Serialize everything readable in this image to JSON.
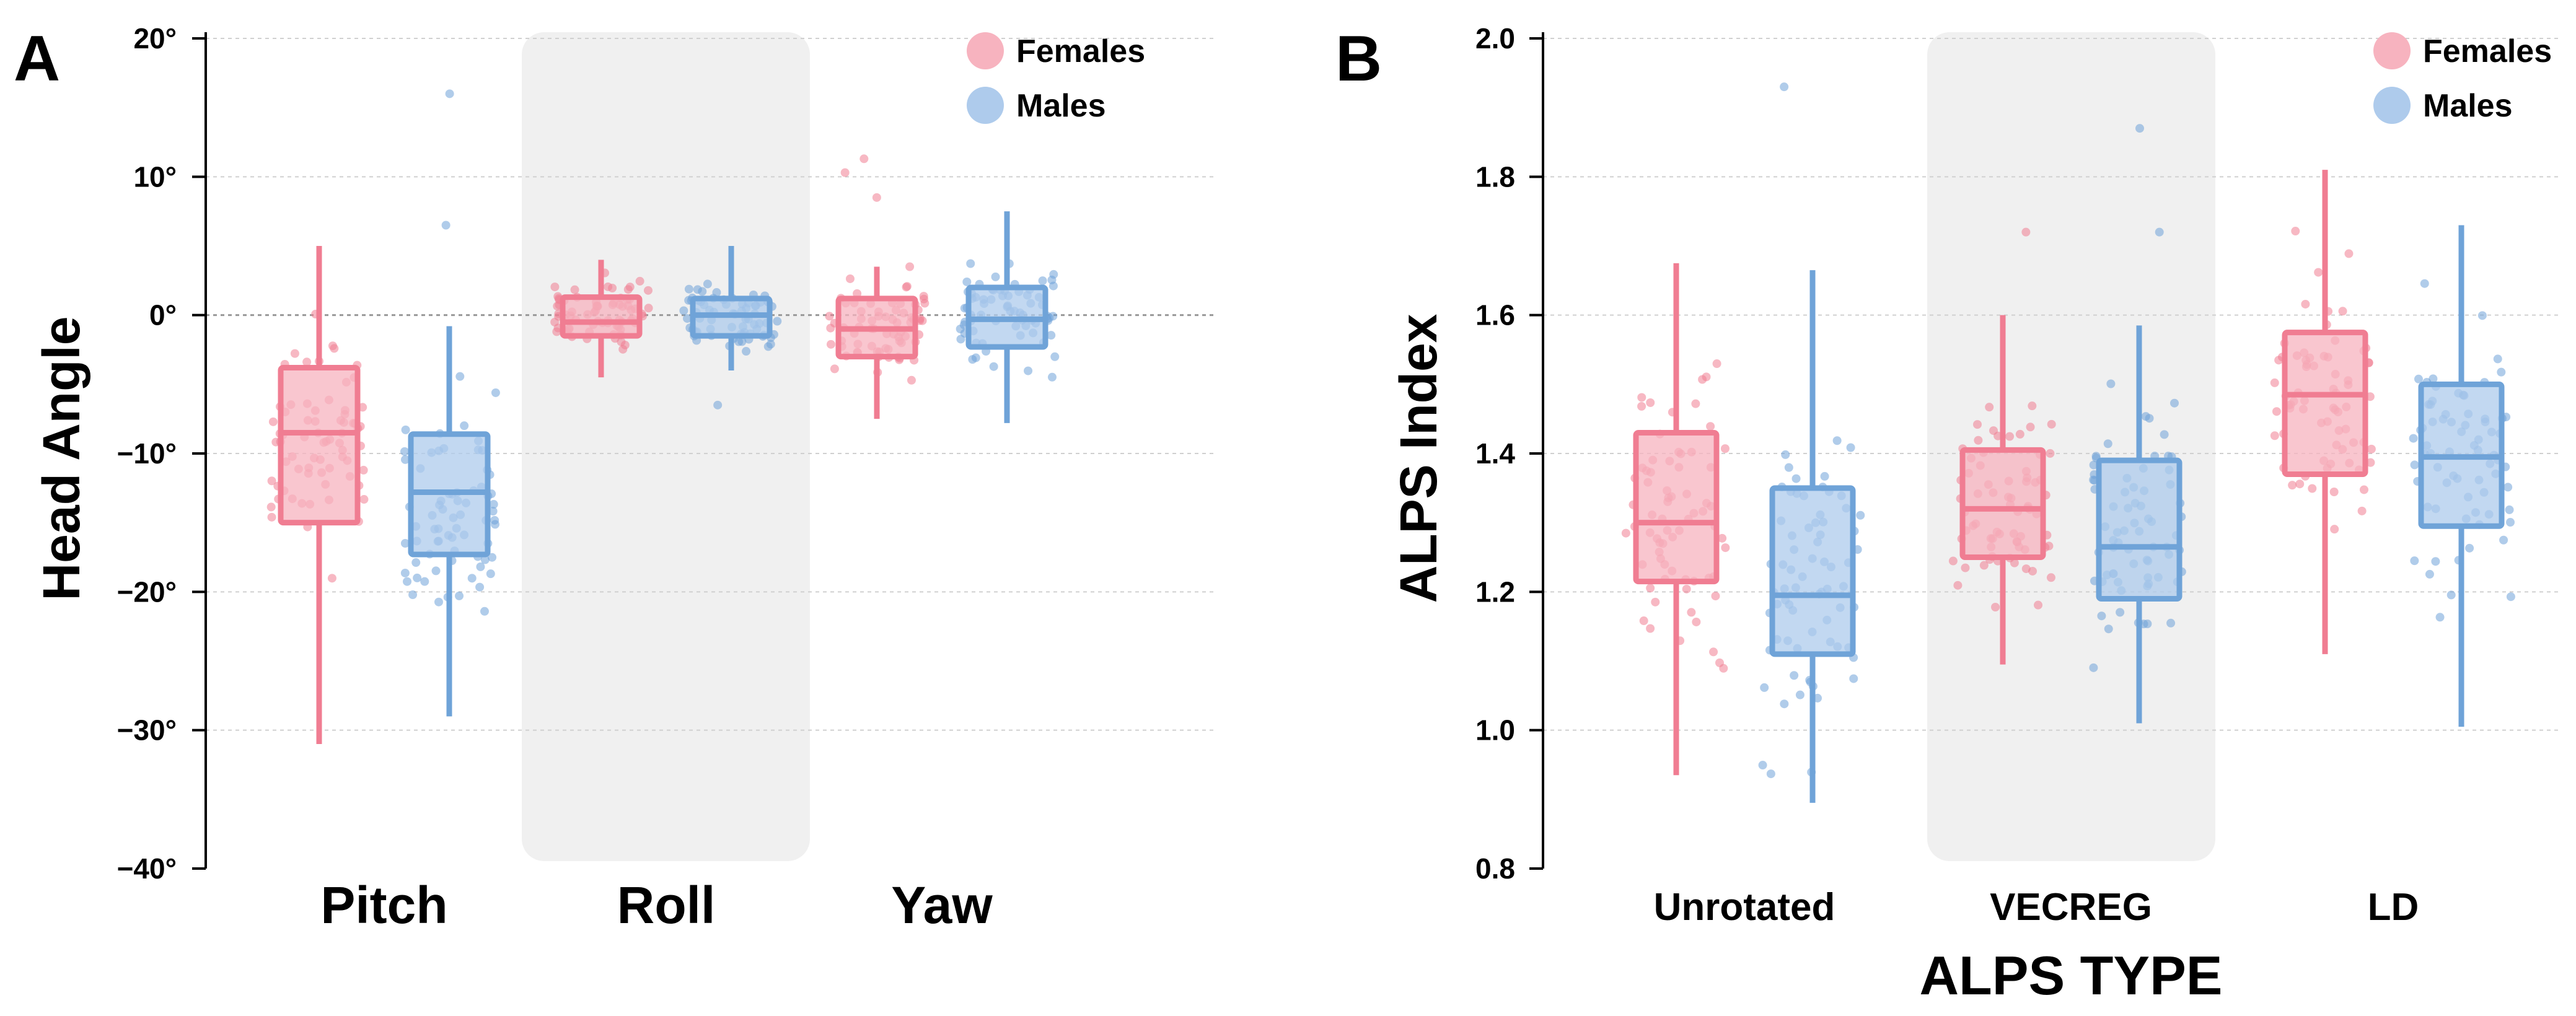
{
  "colors": {
    "females": "#f07d92",
    "females_fill": "#f7b3bf",
    "males": "#6fa3d8",
    "males_fill": "#aecbec",
    "highlight": "#f0f0f0"
  },
  "legend": {
    "females": "Females",
    "males": "Males"
  },
  "chart_data": [
    {
      "panel": "A",
      "type": "box",
      "title": "",
      "ylabel": "Head Angle",
      "xlabel": "",
      "ylim": [
        -40,
        20
      ],
      "yticks": [
        20,
        10,
        0,
        -10,
        -20,
        -30,
        -40
      ],
      "ytick_labels": [
        "20°",
        "10°",
        "0°",
        "−10°",
        "−20°",
        "−30°",
        "−40°"
      ],
      "categories": [
        "Pitch",
        "Roll",
        "Yaw"
      ],
      "highlight_category": 1,
      "zero_reference_line": true,
      "legend_position": "top-right",
      "series": [
        {
          "name": "Females",
          "boxes": [
            {
              "whisker_low": -31,
              "q1": -15,
              "median": -8.5,
              "q3": -3.8,
              "whisker_high": 5
            },
            {
              "whisker_low": -4.5,
              "q1": -1.5,
              "median": -0.5,
              "q3": 1.3,
              "whisker_high": 4
            },
            {
              "whisker_low": -7.5,
              "q1": -3,
              "median": -1,
              "q3": 1.2,
              "whisker_high": 3.5
            }
          ],
          "outliers": [
            [],
            [],
            [
              8.5,
              10.3,
              11.3
            ]
          ]
        },
        {
          "name": "Males",
          "boxes": [
            {
              "whisker_low": -29,
              "q1": -17.3,
              "median": -12.8,
              "q3": -8.6,
              "whisker_high": -0.8
            },
            {
              "whisker_low": -4,
              "q1": -1.5,
              "median": 0,
              "q3": 1.2,
              "whisker_high": 5
            },
            {
              "whisker_low": -7.8,
              "q1": -2.3,
              "median": -0.3,
              "q3": 2,
              "whisker_high": 7.5
            }
          ],
          "outliers": [
            [
              6.5,
              16
            ],
            [
              -6.5
            ],
            []
          ]
        }
      ]
    },
    {
      "panel": "B",
      "type": "box",
      "title": "",
      "ylabel": "ALPS Index",
      "xlabel": "ALPS TYPE",
      "ylim": [
        0.8,
        2.0
      ],
      "yticks": [
        2.0,
        1.8,
        1.6,
        1.4,
        1.2,
        1.0,
        0.8
      ],
      "ytick_labels": [
        "2.0",
        "1.8",
        "1.6",
        "1.4",
        "1.2",
        "1.0",
        "0.8"
      ],
      "categories": [
        "Unrotated",
        "VECREG",
        "LD"
      ],
      "highlight_category": 1,
      "zero_reference_line": false,
      "legend_position": "top-right",
      "series": [
        {
          "name": "Females",
          "boxes": [
            {
              "whisker_low": 0.935,
              "q1": 1.215,
              "median": 1.3,
              "q3": 1.43,
              "whisker_high": 1.675
            },
            {
              "whisker_low": 1.095,
              "q1": 1.25,
              "median": 1.32,
              "q3": 1.405,
              "whisker_high": 1.6
            },
            {
              "whisker_low": 1.11,
              "q1": 1.37,
              "median": 1.485,
              "q3": 1.575,
              "whisker_high": 1.81
            }
          ],
          "outliers": [
            [],
            [
              1.72
            ],
            []
          ]
        },
        {
          "name": "Males",
          "boxes": [
            {
              "whisker_low": 0.895,
              "q1": 1.11,
              "median": 1.195,
              "q3": 1.35,
              "whisker_high": 1.665
            },
            {
              "whisker_low": 1.01,
              "q1": 1.19,
              "median": 1.265,
              "q3": 1.39,
              "whisker_high": 1.585
            },
            {
              "whisker_low": 1.005,
              "q1": 1.295,
              "median": 1.395,
              "q3": 1.5,
              "whisker_high": 1.73
            }
          ],
          "outliers": [
            [
              1.93
            ],
            [
              1.72,
              1.87
            ],
            []
          ]
        }
      ]
    }
  ]
}
